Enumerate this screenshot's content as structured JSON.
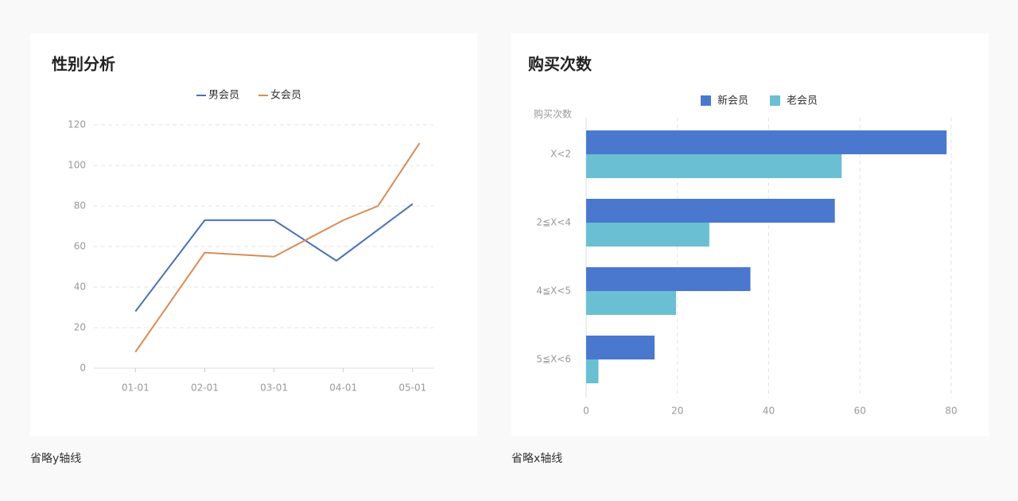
{
  "chart_data": [
    {
      "type": "line",
      "title": "性别分析",
      "xticks": [
        {
          "value": 0,
          "label": "01-01"
        },
        {
          "value": 1,
          "label": "02-01"
        },
        {
          "value": 2,
          "label": "03-01"
        },
        {
          "value": 3,
          "label": "04-01"
        },
        {
          "value": 4,
          "label": "05-01"
        }
      ],
      "xlim": [
        -0.6,
        4.3
      ],
      "ylim": [
        0,
        120
      ],
      "yticks": [
        0,
        20,
        40,
        60,
        80,
        100,
        120
      ],
      "grid": true,
      "legend": "top",
      "series": [
        {
          "name": "男会员",
          "color": "#4a72b8",
          "x": [
            0,
            1,
            2,
            2.9,
            4
          ],
          "values": [
            28,
            73,
            73,
            53,
            81
          ]
        },
        {
          "name": "女会员",
          "color": "#d98b55",
          "x": [
            0,
            1,
            2,
            3,
            3.5,
            4.1
          ],
          "values": [
            8,
            57,
            55,
            73,
            80,
            111
          ]
        }
      ]
    },
    {
      "type": "hbar",
      "title": "购买次数",
      "y_label": "购买次数",
      "categories": [
        "X<2",
        "2≦X<4",
        "4≦X<5",
        "5≦X<6"
      ],
      "xlim": [
        0,
        80
      ],
      "xticks": [
        0,
        20,
        40,
        60,
        80
      ],
      "grid": true,
      "legend": "top",
      "series": [
        {
          "name": "新会员",
          "color": "#4a78cf",
          "values": [
            79,
            54.5,
            36,
            15
          ]
        },
        {
          "name": "老会员",
          "color": "#6bbfd3",
          "values": [
            56,
            27,
            19.7,
            2.7
          ]
        }
      ]
    }
  ],
  "captions": [
    "省略y轴线",
    "省略x轴线"
  ]
}
